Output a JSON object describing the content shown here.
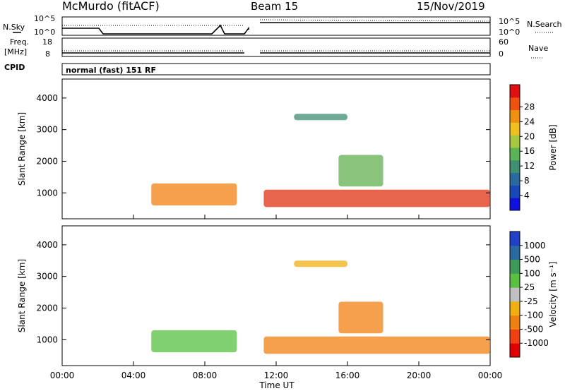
{
  "header": {
    "station": "McMurdo (fitACF)",
    "beam": "Beam 15",
    "date": "15/Nov/2019"
  },
  "noise_panel": {
    "left_label": "N.Sky",
    "left_ticks": [
      "10^5",
      "10^0"
    ],
    "right_ticks": [
      "10^5",
      "10^0"
    ],
    "right_label": "N.Search"
  },
  "freq_panel": {
    "left_label_1": "Freq.",
    "left_label_2": "[MHz]",
    "left_ticks": [
      "18",
      "8"
    ],
    "right_ticks": [
      "60",
      "0"
    ],
    "right_label": "Nave"
  },
  "cpid": {
    "label": "CPID",
    "value": "normal (fast) 151 RF"
  },
  "x_axis": {
    "label": "Time UT",
    "ticks": [
      "00:00",
      "04:00",
      "08:00",
      "12:00",
      "16:00",
      "20:00",
      "00:00"
    ]
  },
  "chart_data": [
    {
      "type": "heatmap",
      "name": "power",
      "xlabel": "Time UT",
      "ylabel": "Slant Range [km]",
      "x_range_hours": [
        0,
        24
      ],
      "ylim": [
        180,
        4600
      ],
      "y_ticks": [
        "1000",
        "2000",
        "3000",
        "4000"
      ],
      "data_gap_hours": [
        10.2,
        11.3
      ],
      "colorbar": {
        "label": "Power [dB]",
        "ticks": [
          "4",
          "8",
          "12",
          "16",
          "20",
          "24",
          "28"
        ],
        "colors": [
          "#1010e0",
          "#1848b8",
          "#2a6aa0",
          "#3f8f70",
          "#5ab555",
          "#a8c840",
          "#f0c020",
          "#f09010",
          "#f05010",
          "#e01010"
        ]
      },
      "features": [
        {
          "t0": 5.0,
          "t1": 9.8,
          "r0": 600,
          "r1": 1300,
          "color": "#f08010"
        },
        {
          "t0": 11.3,
          "t1": 24.0,
          "r0": 550,
          "r1": 1100,
          "color": "#e03010"
        },
        {
          "t0": 15.5,
          "t1": 18.0,
          "r0": 1200,
          "r1": 2200,
          "color": "#60b050"
        },
        {
          "t0": 13.0,
          "t1": 16.0,
          "r0": 3300,
          "r1": 3500,
          "color": "#3f8f70"
        }
      ]
    },
    {
      "type": "heatmap",
      "name": "velocity",
      "xlabel": "Time UT",
      "ylabel": "Slant Range [km]",
      "x_range_hours": [
        0,
        24
      ],
      "ylim": [
        180,
        4600
      ],
      "y_ticks": [
        "1000",
        "2000",
        "3000",
        "4000"
      ],
      "data_gap_hours": [
        10.2,
        11.3
      ],
      "colorbar": {
        "label": "Velocity [m s⁻¹]",
        "ticks": [
          "1000",
          "500",
          "100",
          "25",
          "-25",
          "-100",
          "-500",
          "-1000"
        ],
        "colors": [
          "#2040c8",
          "#2a6aa0",
          "#3f9a5a",
          "#5ac040",
          "#c0c0c0",
          "#f0b010",
          "#f08010",
          "#f04010",
          "#e00000"
        ]
      },
      "features": [
        {
          "t0": 5.0,
          "t1": 9.8,
          "r0": 600,
          "r1": 1300,
          "color": "#5ac040"
        },
        {
          "t0": 11.3,
          "t1": 24.0,
          "r0": 550,
          "r1": 1100,
          "color": "#f08010"
        },
        {
          "t0": 15.5,
          "t1": 18.0,
          "r0": 1200,
          "r1": 2200,
          "color": "#f08010"
        },
        {
          "t0": 13.0,
          "t1": 16.0,
          "r0": 3300,
          "r1": 3500,
          "color": "#f0b010"
        }
      ]
    }
  ]
}
